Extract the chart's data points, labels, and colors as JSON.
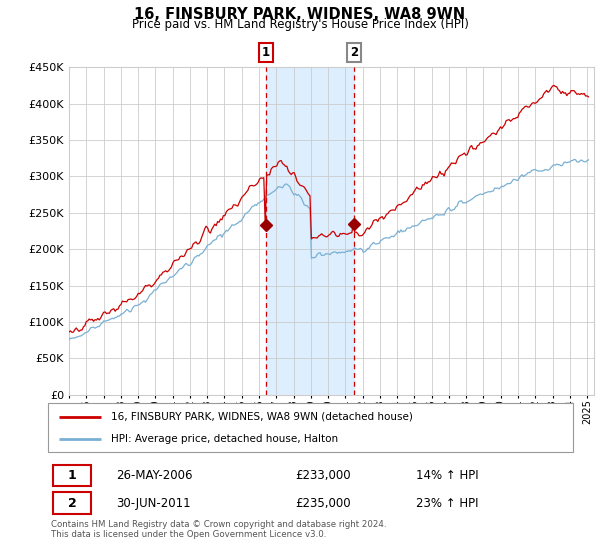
{
  "title": "16, FINSBURY PARK, WIDNES, WA8 9WN",
  "subtitle": "Price paid vs. HM Land Registry's House Price Index (HPI)",
  "legend_line1": "16, FINSBURY PARK, WIDNES, WA8 9WN (detached house)",
  "legend_line2": "HPI: Average price, detached house, Halton",
  "transaction1_date": "26-MAY-2006",
  "transaction1_price": 233000,
  "transaction1_hpi": "14% ↑ HPI",
  "transaction2_date": "30-JUN-2011",
  "transaction2_price": 235000,
  "transaction2_hpi": "23% ↑ HPI",
  "footnote": "Contains HM Land Registry data © Crown copyright and database right 2024.\nThis data is licensed under the Open Government Licence v3.0.",
  "hpi_color": "#7ab0d4",
  "price_color": "#cc0000",
  "marker_color": "#990000",
  "shade_color": "#ddeeff",
  "vline1_color": "#cc0000",
  "vline2_color": "#cc0000",
  "grid_color": "#cccccc",
  "background_color": "#ffffff",
  "ylim": [
    0,
    450000
  ],
  "t1_year": 2006.38,
  "t2_year": 2011.5,
  "p1": 233000,
  "p2": 235000
}
